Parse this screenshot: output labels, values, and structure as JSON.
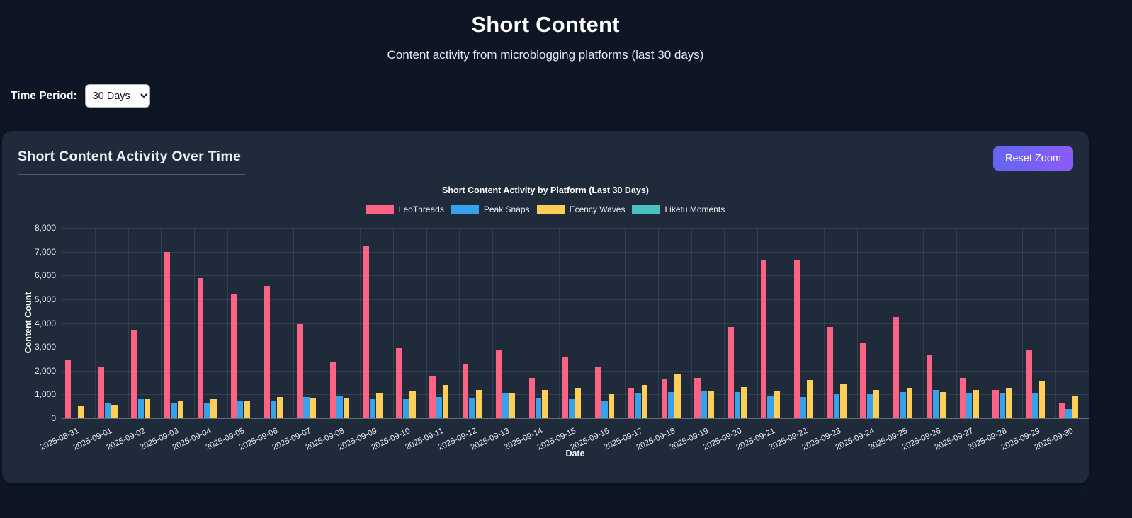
{
  "header": {
    "title": "Short Content",
    "subtitle": "Content activity from microblogging platforms (last 30 days)"
  },
  "controls": {
    "label": "Time Period:",
    "selected_option": "30 Days",
    "options": [
      "30 Days"
    ]
  },
  "card": {
    "title": "Short Content Activity Over Time",
    "reset_button_label": "Reset Zoom"
  },
  "colors": {
    "page_background": "#0e1626",
    "card_background": "#1f2a3a",
    "button_gradient_start": "#6366f1",
    "button_gradient_end": "#8b5cf6",
    "series_leothreads": "#FF6384",
    "series_peak_snaps": "#36A2EB",
    "series_ecency_waves": "#FFCE56",
    "series_liketu_moments": "#4BC0C0"
  },
  "chart_data": {
    "type": "bar",
    "title": "Short Content Activity by Platform (Last 30 Days)",
    "xlabel": "Date",
    "ylabel": "Content Count",
    "ylim": [
      0,
      8000
    ],
    "grid": true,
    "legend_position": "top",
    "y_tick_labels": [
      "0",
      "1,000",
      "2,000",
      "3,000",
      "4,000",
      "5,000",
      "6,000",
      "7,000",
      "8,000"
    ],
    "categories": [
      "2025-08-31",
      "2025-09-01",
      "2025-09-02",
      "2025-09-03",
      "2025-09-04",
      "2025-09-05",
      "2025-09-06",
      "2025-09-07",
      "2025-09-08",
      "2025-09-09",
      "2025-09-10",
      "2025-09-11",
      "2025-09-12",
      "2025-09-13",
      "2025-09-14",
      "2025-09-15",
      "2025-09-16",
      "2025-09-17",
      "2025-09-18",
      "2025-09-19",
      "2025-09-20",
      "2025-09-21",
      "2025-09-22",
      "2025-09-23",
      "2025-09-24",
      "2025-09-25",
      "2025-09-26",
      "2025-09-27",
      "2025-09-28",
      "2025-09-29",
      "2025-09-30"
    ],
    "series": [
      {
        "name": "LeoThreads",
        "color": "#FF6384",
        "values": [
          2450,
          2150,
          3700,
          7000,
          5900,
          5200,
          5550,
          3950,
          2350,
          7250,
          2950,
          1750,
          2300,
          2900,
          1700,
          2600,
          2150,
          1250,
          1650,
          1700,
          3850,
          6650,
          6650,
          3850,
          3150,
          4250,
          2650,
          1700,
          1200,
          2900,
          650
        ]
      },
      {
        "name": "Peak Snaps",
        "color": "#36A2EB",
        "values": [
          30,
          650,
          800,
          650,
          650,
          700,
          750,
          900,
          950,
          800,
          800,
          900,
          850,
          1050,
          850,
          800,
          750,
          1050,
          1100,
          1150,
          1100,
          950,
          900,
          1000,
          1000,
          1100,
          1200,
          1050,
          1050,
          1050,
          400
        ]
      },
      {
        "name": "Ecency Waves",
        "color": "#FFCE56",
        "values": [
          500,
          550,
          800,
          700,
          800,
          700,
          900,
          850,
          850,
          1050,
          1150,
          1400,
          1200,
          1050,
          1200,
          1250,
          1000,
          1400,
          1880,
          1150,
          1300,
          1150,
          1600,
          1450,
          1200,
          1250,
          1100,
          1200,
          1250,
          1550,
          950
        ]
      },
      {
        "name": "Liketu Moments",
        "color": "#4BC0C0",
        "values": [
          0,
          0,
          0,
          0,
          0,
          0,
          0,
          0,
          0,
          0,
          0,
          0,
          0,
          0,
          0,
          0,
          0,
          0,
          0,
          0,
          0,
          0,
          0,
          0,
          0,
          0,
          0,
          0,
          0,
          0,
          0
        ]
      }
    ]
  }
}
